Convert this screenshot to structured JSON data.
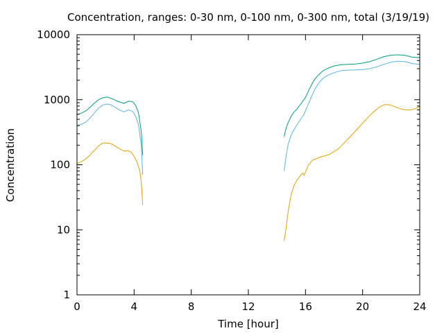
{
  "chart_data": {
    "type": "line",
    "title": "Concentration, ranges: 0-30 nm, 0-100 nm, 0-300 nm, total (3/19/19)",
    "xlabel": "Time [hour]",
    "ylabel": "Concentration",
    "xlim": [
      0,
      24
    ],
    "ylim": [
      1,
      10000
    ],
    "yscale": "log",
    "grid": false,
    "x_ticks": [
      0,
      4,
      8,
      12,
      16,
      20,
      24
    ],
    "y_ticks": [
      1,
      10,
      100,
      1000,
      10000
    ],
    "x_tick_labels": [
      "0",
      "4",
      "8",
      "12",
      "16",
      "20",
      "24"
    ],
    "y_tick_labels": [
      "1",
      "10",
      "100",
      "1000",
      "10000"
    ],
    "series": [
      {
        "color": "#e69f00",
        "segments": [
          [
            [
              0,
              104
            ],
            [
              0.3,
              112
            ],
            [
              0.6,
              122
            ],
            [
              0.9,
              140
            ],
            [
              1.2,
              165
            ],
            [
              1.5,
              195
            ],
            [
              1.8,
              215
            ],
            [
              2.1,
              217
            ],
            [
              2.4,
              210
            ],
            [
              2.7,
              192
            ],
            [
              3.0,
              175
            ],
            [
              3.3,
              162
            ],
            [
              3.6,
              165
            ],
            [
              3.8,
              155
            ],
            [
              4.0,
              135
            ],
            [
              4.2,
              110
            ],
            [
              4.4,
              80
            ],
            [
              4.5,
              55
            ],
            [
              4.6,
              24
            ]
          ],
          [
            [
              14.5,
              6.7
            ],
            [
              14.65,
              11
            ],
            [
              14.8,
              20
            ],
            [
              15.0,
              35
            ],
            [
              15.2,
              48
            ],
            [
              15.4,
              58
            ],
            [
              15.6,
              66
            ],
            [
              15.8,
              75
            ],
            [
              15.9,
              69
            ],
            [
              16.0,
              77
            ],
            [
              16.2,
              98
            ],
            [
              16.5,
              118
            ],
            [
              16.8,
              125
            ],
            [
              17.1,
              133
            ],
            [
              17.4,
              138
            ],
            [
              17.7,
              145
            ],
            [
              18.0,
              160
            ],
            [
              18.3,
              175
            ],
            [
              18.6,
              205
            ],
            [
              18.9,
              240
            ],
            [
              19.2,
              280
            ],
            [
              19.5,
              330
            ],
            [
              19.8,
              390
            ],
            [
              20.1,
              460
            ],
            [
              20.4,
              540
            ],
            [
              20.7,
              630
            ],
            [
              21.0,
              720
            ],
            [
              21.3,
              800
            ],
            [
              21.6,
              845
            ],
            [
              21.9,
              830
            ],
            [
              22.2,
              790
            ],
            [
              22.5,
              745
            ],
            [
              22.8,
              710
            ],
            [
              23.1,
              695
            ],
            [
              23.4,
              700
            ],
            [
              23.7,
              730
            ],
            [
              24.0,
              790
            ]
          ]
        ]
      },
      {
        "color": "#56b4e9",
        "segments": [
          [
            [
              0,
              400
            ],
            [
              0.3,
              420
            ],
            [
              0.6,
              450
            ],
            [
              0.9,
              520
            ],
            [
              1.2,
              620
            ],
            [
              1.5,
              740
            ],
            [
              1.8,
              830
            ],
            [
              2.1,
              860
            ],
            [
              2.4,
              830
            ],
            [
              2.7,
              760
            ],
            [
              3.0,
              690
            ],
            [
              3.3,
              650
            ],
            [
              3.6,
              700
            ],
            [
              3.9,
              660
            ],
            [
              4.1,
              560
            ],
            [
              4.3,
              420
            ],
            [
              4.5,
              200
            ],
            [
              4.6,
              70
            ]
          ],
          [
            [
              14.5,
              80
            ],
            [
              14.65,
              140
            ],
            [
              14.8,
              210
            ],
            [
              15.0,
              290
            ],
            [
              15.3,
              380
            ],
            [
              15.6,
              480
            ],
            [
              15.9,
              600
            ],
            [
              16.1,
              760
            ],
            [
              16.4,
              1100
            ],
            [
              16.7,
              1500
            ],
            [
              17.0,
              1900
            ],
            [
              17.3,
              2200
            ],
            [
              17.6,
              2400
            ],
            [
              18.0,
              2600
            ],
            [
              18.5,
              2800
            ],
            [
              19.0,
              2850
            ],
            [
              19.5,
              2870
            ],
            [
              20.0,
              2900
            ],
            [
              20.5,
              3000
            ],
            [
              21.0,
              3200
            ],
            [
              21.5,
              3500
            ],
            [
              22.0,
              3800
            ],
            [
              22.5,
              3900
            ],
            [
              23.0,
              3850
            ],
            [
              23.5,
              3600
            ],
            [
              24.0,
              3500
            ]
          ]
        ]
      },
      {
        "color": "#009e73",
        "segments": [
          [
            [
              0,
              590
            ],
            [
              0.3,
              620
            ],
            [
              0.6,
              670
            ],
            [
              0.9,
              760
            ],
            [
              1.2,
              880
            ],
            [
              1.5,
              1000
            ],
            [
              1.8,
              1070
            ],
            [
              2.1,
              1100
            ],
            [
              2.4,
              1050
            ],
            [
              2.7,
              980
            ],
            [
              3.0,
              920
            ],
            [
              3.3,
              880
            ],
            [
              3.6,
              950
            ],
            [
              3.9,
              930
            ],
            [
              4.1,
              820
            ],
            [
              4.3,
              640
            ],
            [
              4.5,
              330
            ],
            [
              4.6,
              140
            ]
          ],
          [
            [
              14.5,
              270
            ],
            [
              14.65,
              370
            ],
            [
              14.8,
              450
            ],
            [
              15.0,
              560
            ],
            [
              15.2,
              650
            ],
            [
              15.4,
              720
            ],
            [
              15.7,
              880
            ],
            [
              16.0,
              1080
            ],
            [
              16.3,
              1500
            ],
            [
              16.6,
              2000
            ],
            [
              16.9,
              2400
            ],
            [
              17.2,
              2750
            ],
            [
              17.5,
              3000
            ],
            [
              18.0,
              3300
            ],
            [
              18.5,
              3450
            ],
            [
              19.0,
              3500
            ],
            [
              19.5,
              3550
            ],
            [
              20.0,
              3650
            ],
            [
              20.5,
              3850
            ],
            [
              21.0,
              4200
            ],
            [
              21.5,
              4600
            ],
            [
              22.0,
              4850
            ],
            [
              22.5,
              4900
            ],
            [
              23.0,
              4800
            ],
            [
              23.5,
              4500
            ],
            [
              24.0,
              4450
            ]
          ]
        ]
      }
    ]
  }
}
